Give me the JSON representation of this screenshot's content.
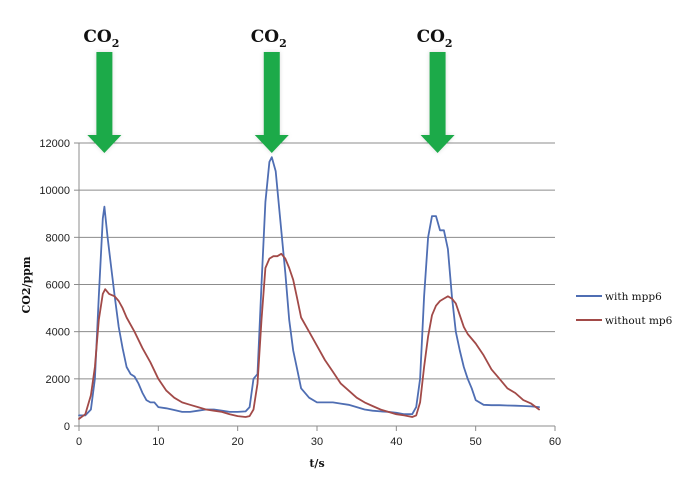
{
  "chart_data": {
    "type": "line",
    "xlabel": "t/s",
    "ylabel": "CO2/ppm",
    "xlim": [
      0,
      60
    ],
    "ylim": [
      0,
      12000
    ],
    "xticks": [
      0,
      10,
      20,
      30,
      40,
      50,
      60
    ],
    "yticks": [
      0,
      2000,
      4000,
      6000,
      8000,
      10000,
      12000
    ],
    "grid": "horizontal",
    "legend_position": "right",
    "annotations": [
      {
        "label": "CO",
        "subscript": "2",
        "x": 3.2
      },
      {
        "label": "CO",
        "subscript": "2",
        "x": 24.3
      },
      {
        "label": "CO",
        "subscript": "2",
        "x": 45.2
      }
    ],
    "series": [
      {
        "name": "with mpp6",
        "color": "#4F6EB3",
        "points": [
          [
            0,
            450
          ],
          [
            0.8,
            450
          ],
          [
            1.5,
            700
          ],
          [
            2,
            2000
          ],
          [
            2.5,
            5500
          ],
          [
            3,
            8800
          ],
          [
            3.2,
            9300
          ],
          [
            3.6,
            8000
          ],
          [
            4,
            6900
          ],
          [
            4.5,
            5500
          ],
          [
            5,
            4200
          ],
          [
            5.5,
            3300
          ],
          [
            6,
            2500
          ],
          [
            6.5,
            2200
          ],
          [
            7,
            2100
          ],
          [
            7.5,
            1800
          ],
          [
            8,
            1400
          ],
          [
            8.5,
            1100
          ],
          [
            9,
            1000
          ],
          [
            9.5,
            1000
          ],
          [
            10,
            800
          ],
          [
            11,
            750
          ],
          [
            12,
            680
          ],
          [
            13,
            600
          ],
          [
            14,
            600
          ],
          [
            15,
            650
          ],
          [
            16,
            700
          ],
          [
            17,
            700
          ],
          [
            18,
            650
          ],
          [
            19,
            600
          ],
          [
            20,
            600
          ],
          [
            21,
            620
          ],
          [
            21.5,
            800
          ],
          [
            22,
            2000
          ],
          [
            22.5,
            2200
          ],
          [
            23,
            6000
          ],
          [
            23.5,
            9500
          ],
          [
            24,
            11200
          ],
          [
            24.3,
            11400
          ],
          [
            24.8,
            10800
          ],
          [
            25.3,
            9000
          ],
          [
            26,
            6500
          ],
          [
            26.5,
            4500
          ],
          [
            27,
            3200
          ],
          [
            27.5,
            2400
          ],
          [
            28,
            1600
          ],
          [
            29,
            1200
          ],
          [
            30,
            1000
          ],
          [
            31,
            1000
          ],
          [
            32,
            1000
          ],
          [
            33,
            950
          ],
          [
            34,
            900
          ],
          [
            35,
            800
          ],
          [
            36,
            700
          ],
          [
            37,
            650
          ],
          [
            38,
            620
          ],
          [
            39,
            600
          ],
          [
            40,
            560
          ],
          [
            41,
            500
          ],
          [
            42,
            500
          ],
          [
            42.5,
            800
          ],
          [
            43,
            2000
          ],
          [
            43.5,
            5500
          ],
          [
            44,
            8000
          ],
          [
            44.5,
            8900
          ],
          [
            45,
            8900
          ],
          [
            45.5,
            8300
          ],
          [
            46,
            8300
          ],
          [
            46.5,
            7500
          ],
          [
            47,
            5500
          ],
          [
            47.5,
            4000
          ],
          [
            48,
            3200
          ],
          [
            48.5,
            2500
          ],
          [
            49,
            2000
          ],
          [
            49.5,
            1600
          ],
          [
            50,
            1100
          ],
          [
            51,
            900
          ],
          [
            52,
            880
          ],
          [
            53,
            880
          ],
          [
            54,
            870
          ],
          [
            55,
            860
          ],
          [
            56,
            850
          ],
          [
            57,
            830
          ],
          [
            58,
            800
          ]
        ]
      },
      {
        "name": "without mp6",
        "color": "#A24A48",
        "points": [
          [
            0,
            300
          ],
          [
            0.8,
            500
          ],
          [
            1.5,
            1300
          ],
          [
            2,
            2500
          ],
          [
            2.5,
            4500
          ],
          [
            3,
            5600
          ],
          [
            3.3,
            5800
          ],
          [
            3.8,
            5600
          ],
          [
            4.5,
            5500
          ],
          [
            5,
            5300
          ],
          [
            5.5,
            5000
          ],
          [
            6,
            4600
          ],
          [
            7,
            4000
          ],
          [
            8,
            3300
          ],
          [
            9,
            2700
          ],
          [
            10,
            2000
          ],
          [
            11,
            1500
          ],
          [
            12,
            1200
          ],
          [
            13,
            1000
          ],
          [
            14,
            900
          ],
          [
            15,
            800
          ],
          [
            16,
            700
          ],
          [
            17,
            650
          ],
          [
            18,
            600
          ],
          [
            19,
            500
          ],
          [
            20,
            420
          ],
          [
            21,
            380
          ],
          [
            21.5,
            420
          ],
          [
            22,
            700
          ],
          [
            22.5,
            1800
          ],
          [
            23,
            4500
          ],
          [
            23.5,
            6700
          ],
          [
            24,
            7100
          ],
          [
            24.5,
            7200
          ],
          [
            25,
            7200
          ],
          [
            25.5,
            7300
          ],
          [
            26,
            7100
          ],
          [
            26.5,
            6700
          ],
          [
            27,
            6200
          ],
          [
            27.5,
            5400
          ],
          [
            28,
            4600
          ],
          [
            29,
            4000
          ],
          [
            30,
            3400
          ],
          [
            31,
            2800
          ],
          [
            32,
            2300
          ],
          [
            33,
            1800
          ],
          [
            34,
            1500
          ],
          [
            35,
            1200
          ],
          [
            36,
            1000
          ],
          [
            37,
            850
          ],
          [
            38,
            700
          ],
          [
            39,
            600
          ],
          [
            40,
            500
          ],
          [
            41,
            450
          ],
          [
            42,
            380
          ],
          [
            42.5,
            450
          ],
          [
            43,
            1000
          ],
          [
            43.5,
            2500
          ],
          [
            44,
            3800
          ],
          [
            44.5,
            4700
          ],
          [
            45,
            5100
          ],
          [
            45.5,
            5300
          ],
          [
            46,
            5400
          ],
          [
            46.5,
            5500
          ],
          [
            47,
            5400
          ],
          [
            47.5,
            5200
          ],
          [
            48,
            4700
          ],
          [
            48.5,
            4200
          ],
          [
            49,
            3900
          ],
          [
            50,
            3500
          ],
          [
            51,
            3000
          ],
          [
            52,
            2400
          ],
          [
            53,
            2000
          ],
          [
            54,
            1600
          ],
          [
            55,
            1400
          ],
          [
            56,
            1100
          ],
          [
            57,
            950
          ],
          [
            58,
            700
          ]
        ]
      }
    ]
  }
}
